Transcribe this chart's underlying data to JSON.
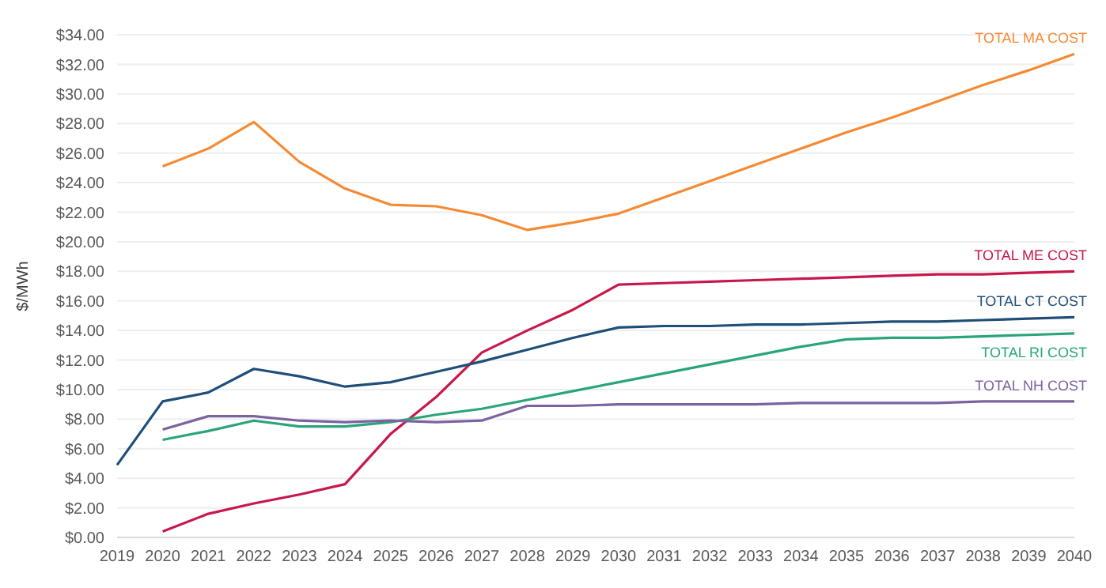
{
  "chart_data": {
    "type": "line",
    "ylabel": "$/MWh",
    "categories": [
      "2019",
      "2020",
      "2021",
      "2022",
      "2023",
      "2024",
      "2025",
      "2026",
      "2027",
      "2028",
      "2029",
      "2030",
      "2031",
      "2032",
      "2033",
      "2034",
      "2035",
      "2036",
      "2037",
      "2038",
      "2039",
      "2040"
    ],
    "series": [
      {
        "name": "TOTAL MA COST",
        "color": "#f58a33",
        "values": [
          null,
          25.1,
          26.3,
          28.1,
          25.4,
          23.6,
          22.5,
          22.4,
          21.8,
          20.8,
          21.3,
          21.9,
          23.0,
          24.1,
          25.2,
          26.3,
          27.4,
          28.4,
          29.5,
          30.6,
          31.6,
          32.7
        ]
      },
      {
        "name": "TOTAL ME COST",
        "color": "#c8174a",
        "values": [
          null,
          0.4,
          1.6,
          2.3,
          2.9,
          3.6,
          7.0,
          9.5,
          12.5,
          14.0,
          15.4,
          17.1,
          17.2,
          17.3,
          17.4,
          17.5,
          17.6,
          17.7,
          17.8,
          17.8,
          17.9,
          18.0
        ]
      },
      {
        "name": "TOTAL CT COST",
        "color": "#1f4e79",
        "values": [
          4.9,
          9.2,
          9.8,
          11.4,
          10.9,
          10.2,
          10.5,
          11.2,
          11.9,
          12.7,
          13.5,
          14.2,
          14.3,
          14.3,
          14.4,
          14.4,
          14.5,
          14.6,
          14.6,
          14.7,
          14.8,
          14.9
        ]
      },
      {
        "name": "TOTAL RI COST",
        "color": "#2aa57a",
        "values": [
          null,
          6.6,
          7.2,
          7.9,
          7.5,
          7.5,
          7.8,
          8.3,
          8.7,
          9.3,
          9.9,
          10.5,
          11.1,
          11.7,
          12.3,
          12.9,
          13.4,
          13.5,
          13.5,
          13.6,
          13.7,
          13.8
        ]
      },
      {
        "name": "TOTAL NH COST",
        "color": "#7b62a0",
        "values": [
          null,
          7.3,
          8.2,
          8.2,
          7.9,
          7.8,
          7.9,
          7.8,
          7.9,
          8.9,
          8.9,
          9.0,
          9.0,
          9.0,
          9.0,
          9.1,
          9.1,
          9.1,
          9.1,
          9.2,
          9.2,
          9.2
        ]
      }
    ],
    "ylim": [
      0,
      34
    ],
    "yticks": [
      {
        "value": 0,
        "label": "$0.00"
      },
      {
        "value": 2,
        "label": "$2.00"
      },
      {
        "value": 4,
        "label": "$4.00"
      },
      {
        "value": 6,
        "label": "$6.00"
      },
      {
        "value": 8,
        "label": "$8.00"
      },
      {
        "value": 10,
        "label": "$10.00"
      },
      {
        "value": 12,
        "label": "$12.00"
      },
      {
        "value": 14,
        "label": "$14.00"
      },
      {
        "value": 16,
        "label": "$16.00"
      },
      {
        "value": 18,
        "label": "$18.00"
      },
      {
        "value": 20,
        "label": "$20.00"
      },
      {
        "value": 22,
        "label": "$22.00"
      },
      {
        "value": 24,
        "label": "$24.00"
      },
      {
        "value": 26,
        "label": "$26.00"
      },
      {
        "value": 28,
        "label": "$28.00"
      },
      {
        "value": 30,
        "label": "$30.00"
      },
      {
        "value": 32,
        "label": "$32.00"
      },
      {
        "value": 34,
        "label": "$34.00"
      }
    ],
    "grid": "y",
    "legend": false,
    "marker": "none",
    "line_style": "solid"
  }
}
